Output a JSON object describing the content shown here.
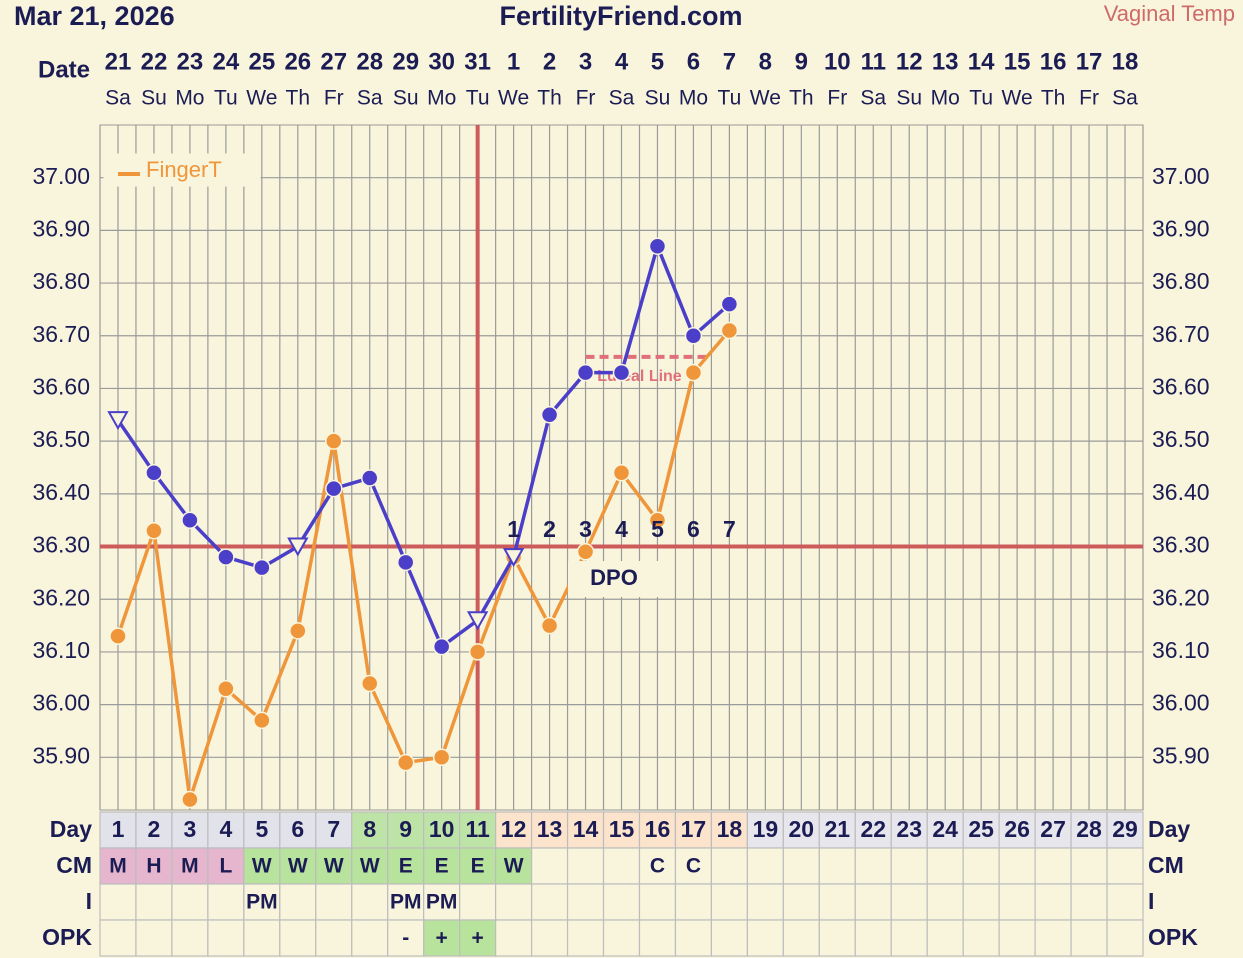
{
  "header": {
    "date": "Mar 21, 2026",
    "site": "FertilityFriend.com",
    "temp_type": "Vaginal Temp"
  },
  "chart_data": {
    "type": "line",
    "date_label": "Date",
    "dates": [
      "21",
      "22",
      "23",
      "24",
      "25",
      "26",
      "27",
      "28",
      "29",
      "30",
      "31",
      "1",
      "2",
      "3",
      "4",
      "5",
      "6",
      "7",
      "8",
      "9",
      "10",
      "11",
      "12",
      "13",
      "14",
      "15",
      "16",
      "17",
      "18"
    ],
    "weekdays": [
      "Sa",
      "Su",
      "Mo",
      "Tu",
      "We",
      "Th",
      "Fr",
      "Sa",
      "Su",
      "Mo",
      "Tu",
      "We",
      "Th",
      "Fr",
      "Sa",
      "Su",
      "Mo",
      "Tu",
      "We",
      "Th",
      "Fr",
      "Sa",
      "Su",
      "Mo",
      "Tu",
      "We",
      "Th",
      "Fr",
      "Sa"
    ],
    "categories": [
      1,
      2,
      3,
      4,
      5,
      6,
      7,
      8,
      9,
      10,
      11,
      12,
      13,
      14,
      15,
      16,
      17,
      18,
      19,
      20,
      21,
      22,
      23,
      24,
      25,
      26,
      27,
      28,
      29
    ],
    "ylim": [
      35.8,
      37.1
    ],
    "yticks": [
      {
        "value": 35.9,
        "label": "35.90"
      },
      {
        "value": 36.0,
        "label": "36.00"
      },
      {
        "value": 36.1,
        "label": "36.10"
      },
      {
        "value": 36.2,
        "label": "36.20"
      },
      {
        "value": 36.3,
        "label": "36.30"
      },
      {
        "value": 36.4,
        "label": "36.40"
      },
      {
        "value": 36.5,
        "label": "36.50"
      },
      {
        "value": 36.6,
        "label": "36.60"
      },
      {
        "value": 36.7,
        "label": "36.70"
      },
      {
        "value": 36.8,
        "label": "36.80"
      },
      {
        "value": 36.9,
        "label": "36.90"
      },
      {
        "value": 37.0,
        "label": "37.00"
      }
    ],
    "grid": true,
    "legend": "top-left",
    "series": [
      {
        "color": "#4b3fc9",
        "values": [
          36.54,
          36.44,
          36.35,
          36.28,
          36.26,
          36.3,
          36.41,
          36.43,
          36.27,
          36.11,
          36.16,
          36.28,
          36.55,
          36.63,
          36.63,
          36.87,
          36.7,
          36.76,
          null,
          null,
          null,
          null,
          null,
          null,
          null,
          null,
          null,
          null,
          null
        ],
        "markers": [
          "triangle",
          "circle",
          "circle",
          "circle",
          "circle",
          "triangle",
          "circle",
          "circle",
          "circle",
          "circle",
          "triangle",
          "triangle",
          "circle",
          "circle",
          "circle",
          "circle",
          "circle",
          "circle",
          null,
          null,
          null,
          null,
          null,
          null,
          null,
          null,
          null,
          null,
          null
        ]
      },
      {
        "name": "FingerT",
        "color": "#f0963a",
        "values": [
          36.13,
          36.33,
          35.82,
          36.03,
          35.97,
          36.14,
          36.5,
          36.04,
          35.89,
          35.9,
          36.1,
          36.28,
          36.15,
          36.29,
          36.44,
          36.35,
          36.63,
          36.71,
          null,
          null,
          null,
          null,
          null,
          null,
          null,
          null,
          null,
          null,
          null
        ]
      }
    ],
    "coverline": {
      "value": 36.3,
      "color": "#cd5b5b"
    },
    "ovulation_day": 11,
    "luteal_line": {
      "label": "Luteal Line",
      "value": 36.66,
      "from_day": 14,
      "to_day": 17,
      "color": "#e0707a"
    },
    "dpo": {
      "label": "DPO",
      "values": [
        null,
        null,
        null,
        null,
        null,
        null,
        null,
        null,
        null,
        null,
        null,
        1,
        2,
        3,
        4,
        5,
        6,
        7,
        null,
        null,
        null,
        null,
        null,
        null,
        null,
        null,
        null,
        null,
        null
      ]
    },
    "rows": [
      {
        "label": "Day",
        "cells": "categories",
        "colors": [
          "#e2e2ea",
          "#e2e2ea",
          "#e2e2ea",
          "#e2e2ea",
          "#e2e2ea",
          "#e2e2ea",
          "#e2e2ea",
          "#bde4a6",
          "#bde4a6",
          "#bde4a6",
          "#bde4a6",
          "#fbe3cc",
          "#fbe3cc",
          "#fbe3cc",
          "#fbe3cc",
          "#fbe3cc",
          "#fbe3cc",
          "#fbe3cc",
          "#e6e6ec",
          "#e6e6ec",
          "#e6e6ec",
          "#e6e6ec",
          "#e6e6ec",
          "#e6e6ec",
          "#e6e6ec",
          "#e6e6ec",
          "#e6e6ec",
          "#e6e6ec",
          "#e6e6ec"
        ]
      },
      {
        "label": "CM",
        "values": [
          "M",
          "H",
          "M",
          "L",
          "W",
          "W",
          "W",
          "W",
          "E",
          "E",
          "E",
          "W",
          null,
          null,
          null,
          "C",
          "C",
          null,
          null,
          null,
          null,
          null,
          null,
          null,
          null,
          null,
          null,
          null,
          null
        ],
        "colors": [
          "#e5b6cd",
          "#e5b6cd",
          "#e5b6cd",
          "#e5b6cd",
          "#b8e39c",
          "#b8e39c",
          "#b8e39c",
          "#b8e39c",
          "#b8e39c",
          "#b8e39c",
          "#b8e39c",
          "#b8e39c",
          null,
          null,
          null,
          null,
          null,
          null,
          null,
          null,
          null,
          null,
          null,
          null,
          null,
          null,
          null,
          null,
          null
        ]
      },
      {
        "label": "I",
        "values": [
          null,
          null,
          null,
          null,
          "PM",
          null,
          null,
          null,
          "PM",
          "PM",
          null,
          null,
          null,
          null,
          null,
          null,
          null,
          null,
          null,
          null,
          null,
          null,
          null,
          null,
          null,
          null,
          null,
          null,
          null
        ]
      },
      {
        "label": "OPK",
        "values": [
          null,
          null,
          null,
          null,
          null,
          null,
          null,
          null,
          "-",
          "+",
          "+",
          null,
          null,
          null,
          null,
          null,
          null,
          null,
          null,
          null,
          null,
          null,
          null,
          null,
          null,
          null,
          null,
          null,
          null
        ],
        "colors": [
          null,
          null,
          null,
          null,
          null,
          null,
          null,
          null,
          null,
          "#b8e39c",
          "#b8e39c",
          null,
          null,
          null,
          null,
          null,
          null,
          null,
          null,
          null,
          null,
          null,
          null,
          null,
          null,
          null,
          null,
          null,
          null
        ]
      }
    ]
  }
}
